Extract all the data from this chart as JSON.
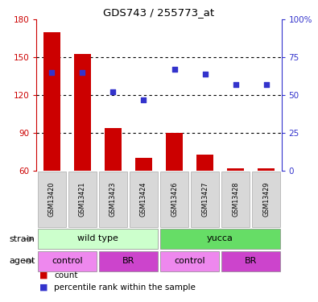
{
  "title": "GDS743 / 255773_at",
  "samples": [
    "GSM13420",
    "GSM13421",
    "GSM13423",
    "GSM13424",
    "GSM13426",
    "GSM13427",
    "GSM13428",
    "GSM13429"
  ],
  "bar_values": [
    170,
    153,
    94,
    70,
    90,
    73,
    62,
    62
  ],
  "dot_values": [
    65,
    65,
    52,
    47,
    67,
    64,
    57,
    57
  ],
  "ymin": 60,
  "ymax": 180,
  "yticks": [
    60,
    90,
    120,
    150,
    180
  ],
  "y2min": 0,
  "y2max": 100,
  "y2ticks": [
    0,
    25,
    50,
    75,
    100
  ],
  "bar_color": "#cc0000",
  "dot_color": "#3333cc",
  "strain_labels": [
    "wild type",
    "yucca"
  ],
  "strain_ranges": [
    [
      0,
      3
    ],
    [
      4,
      7
    ]
  ],
  "strain_colors": [
    "#ccffcc",
    "#66dd66"
  ],
  "agent_configs": [
    {
      "range": [
        0,
        1
      ],
      "label": "control",
      "color": "#ee88ee"
    },
    {
      "range": [
        2,
        3
      ],
      "label": "BR",
      "color": "#cc44cc"
    },
    {
      "range": [
        4,
        5
      ],
      "label": "control",
      "color": "#ee88ee"
    },
    {
      "range": [
        6,
        7
      ],
      "label": "BR",
      "color": "#cc44cc"
    }
  ],
  "legend_count_label": "count",
  "legend_pct_label": "percentile rank within the sample"
}
